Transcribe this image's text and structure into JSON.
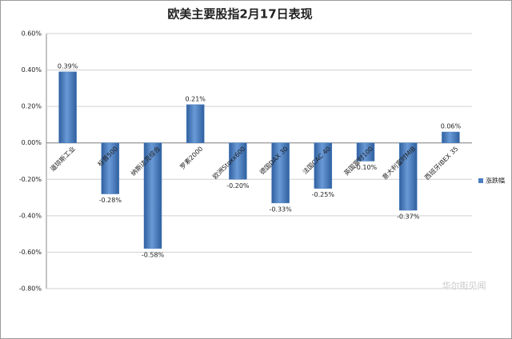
{
  "chart_data": {
    "type": "bar",
    "title": "欧美主要股指2月17日表现",
    "categories": [
      "道琼斯工业",
      "标普500",
      "纳斯达克综合",
      "罗素2000",
      "欧洲Stoxx600",
      "德国DAX 30",
      "法国CAC 40",
      "英国富时100",
      "意大利富时MIB",
      "西班牙IBEX 35"
    ],
    "series": [
      {
        "name": "涨跌幅",
        "color": "#4a7fc1",
        "values": [
          0.39,
          -0.28,
          -0.58,
          0.21,
          -0.2,
          -0.33,
          -0.25,
          -0.1,
          -0.37,
          0.06
        ],
        "value_labels": [
          "0.39%",
          "-0.28%",
          "-0.58%",
          "0.21%",
          "-0.20%",
          "-0.33%",
          "-0.25%",
          "-0.10%",
          "-0.37%",
          "0.06%"
        ]
      }
    ],
    "ylim": [
      -0.8,
      0.6
    ],
    "yticks": [
      {
        "value": 0.6,
        "label": "0.60%"
      },
      {
        "value": 0.4,
        "label": "0.40%"
      },
      {
        "value": 0.2,
        "label": "0.20%"
      },
      {
        "value": 0,
        "label": "0.00%"
      },
      {
        "value": -0.2,
        "label": "-0.20%"
      },
      {
        "value": -0.4,
        "label": "-0.40%"
      },
      {
        "value": -0.6,
        "label": "-0.60%"
      },
      {
        "value": -0.8,
        "label": "-0.80%"
      }
    ],
    "grid": true,
    "legend": "right",
    "watermark": "华尔街见闻"
  }
}
